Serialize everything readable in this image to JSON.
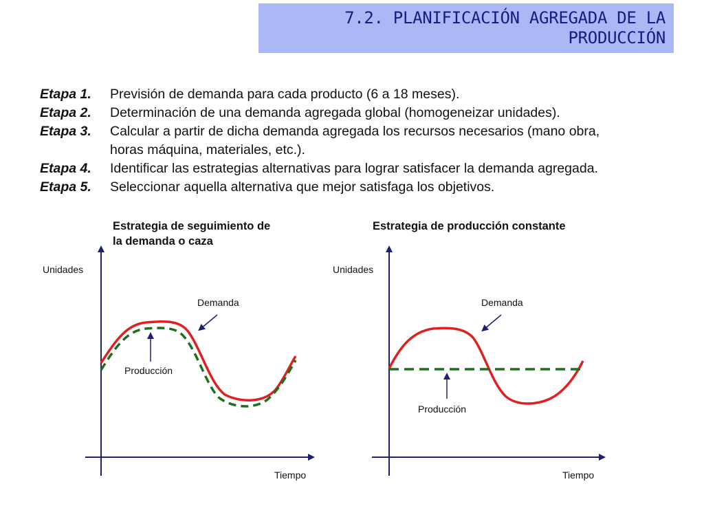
{
  "title": {
    "line1": "7.2. PLANIFICACIÓN AGREGADA DE LA",
    "line2": "PRODUCCIÓN"
  },
  "stages": [
    {
      "label": "Etapa 1.",
      "text": "Previsión de demanda para cada producto (6 a 18 meses)."
    },
    {
      "label": "Etapa 2.",
      "text": "Determinación de una demanda agregada global (homogeneizar unidades)."
    },
    {
      "label": "Etapa 3.",
      "text": "Calcular a partir de dicha demanda agregada los recursos necesarios (mano obra,\nhoras máquina, materiales, etc.)."
    },
    {
      "label": "Etapa 4.",
      "text": "Identificar las estrategias alternativas para lograr satisfacer la demanda agregada."
    },
    {
      "label": "Etapa 5.",
      "text": "Seleccionar aquella alternativa que mejor satisfaga los objetivos."
    }
  ],
  "diagrams": [
    {
      "title": "Estrategia de seguimiento de\nla demanda o caza",
      "y_axis_label": "Unidades",
      "x_axis_label": "Tiempo",
      "demand_label": "Demanda",
      "production_label": "Producción"
    },
    {
      "title": "Estrategia de producción constante",
      "y_axis_label": "Unidades",
      "x_axis_label": "Tiempo",
      "demand_label": "Demanda",
      "production_label": "Producción"
    }
  ],
  "colors": {
    "title_bg": "#aab8f5",
    "title_text": "#1a1a80",
    "axis": "#1f1f6e",
    "demand": "#e02020",
    "production": "#1f6e1f"
  }
}
